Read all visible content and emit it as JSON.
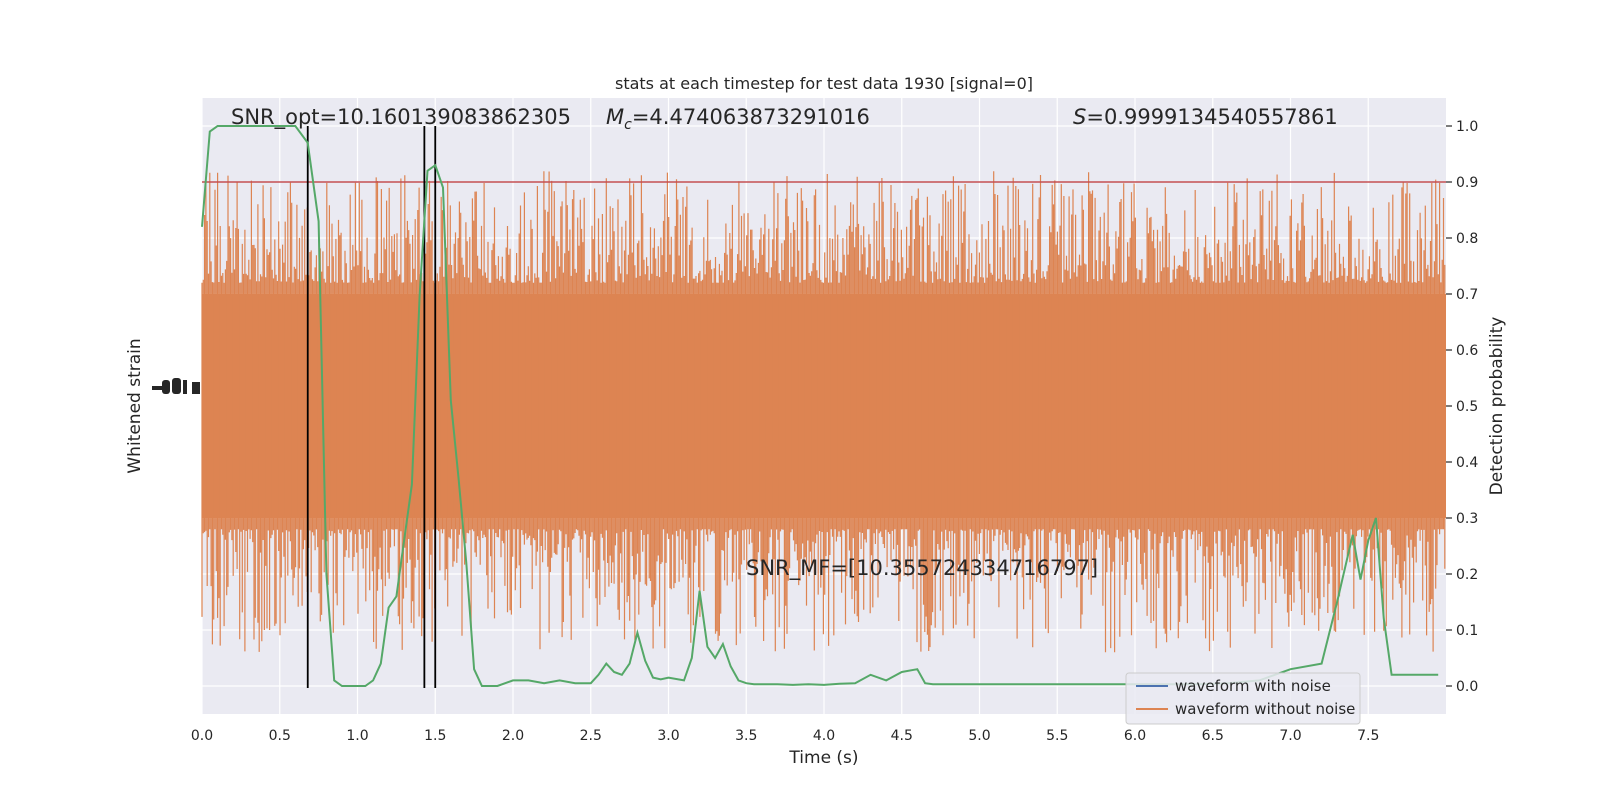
{
  "chart_data": {
    "type": "line",
    "title": "stats at each timestep for test data 1930 [signal=0]",
    "xlabel": "Time (s)",
    "ylabel_left": "Whitened strain",
    "ylabel_right": "Detection probability",
    "xlim": [
      0,
      8
    ],
    "ylim_right": [
      -0.05,
      1.05
    ],
    "x_ticks": [
      "0.0",
      "0.5",
      "1.0",
      "1.5",
      "2.0",
      "2.5",
      "3.0",
      "3.5",
      "4.0",
      "4.5",
      "5.0",
      "5.5",
      "6.0",
      "6.5",
      "7.0",
      "7.5"
    ],
    "y_ticks_right": [
      "0.0",
      "0.1",
      "0.2",
      "0.3",
      "0.4",
      "0.5",
      "0.6",
      "0.7",
      "0.8",
      "0.9",
      "1.0"
    ],
    "grid": true,
    "legend_position": "lower right",
    "annotations": {
      "snr_opt": "SNR_opt=10.160139083862305",
      "mc_symbol": "M",
      "mc_subscript": "c",
      "mc_value": "=4.474063873291016",
      "s_symbol": "S",
      "s_value": "=0.9999134540557861",
      "snr_mf": "SNR_MF=[10.355724334716797]"
    },
    "threshold": 0.9,
    "vertical_lines_x": [
      0.68,
      1.43,
      1.5
    ],
    "series": [
      {
        "name": "waveform with noise",
        "color": "#4c72b0",
        "values": []
      },
      {
        "name": "waveform without noise",
        "color": "#dd8452",
        "note_band": [
          0.3,
          0.7
        ]
      },
      {
        "name": "",
        "color": "#55a868",
        "x": [
          0.0,
          0.05,
          0.1,
          0.2,
          0.3,
          0.4,
          0.5,
          0.6,
          0.68,
          0.75,
          0.8,
          0.85,
          0.9,
          0.95,
          1.0,
          1.05,
          1.1,
          1.15,
          1.2,
          1.25,
          1.3,
          1.35,
          1.4,
          1.45,
          1.5,
          1.55,
          1.6,
          1.65,
          1.7,
          1.75,
          1.8,
          1.85,
          1.9,
          2.0,
          2.1,
          2.2,
          2.3,
          2.4,
          2.5,
          2.55,
          2.6,
          2.65,
          2.7,
          2.75,
          2.8,
          2.85,
          2.9,
          2.95,
          3.0,
          3.1,
          3.15,
          3.2,
          3.25,
          3.3,
          3.35,
          3.4,
          3.45,
          3.5,
          3.55,
          3.6,
          3.7,
          3.8,
          3.9,
          4.0,
          4.1,
          4.2,
          4.3,
          4.4,
          4.5,
          4.6,
          4.65,
          4.7,
          4.75,
          4.8,
          4.9,
          5.0,
          5.2,
          5.4,
          5.6,
          5.8,
          6.0,
          6.2,
          6.4,
          6.6,
          6.8,
          7.0,
          7.2,
          7.3,
          7.4,
          7.45,
          7.5,
          7.55,
          7.6,
          7.65,
          7.7,
          7.75,
          7.8,
          7.85,
          7.9,
          7.95
        ],
        "values": [
          0.82,
          0.99,
          1.0,
          1.0,
          1.0,
          1.0,
          1.0,
          1.0,
          0.97,
          0.83,
          0.2,
          0.01,
          0.0,
          0.0,
          0.0,
          0.0,
          0.01,
          0.04,
          0.14,
          0.16,
          0.26,
          0.36,
          0.7,
          0.92,
          0.93,
          0.89,
          0.51,
          0.37,
          0.22,
          0.03,
          0.0,
          0.0,
          0.0,
          0.01,
          0.01,
          0.005,
          0.01,
          0.005,
          0.005,
          0.02,
          0.04,
          0.025,
          0.02,
          0.04,
          0.095,
          0.045,
          0.015,
          0.012,
          0.015,
          0.01,
          0.05,
          0.17,
          0.07,
          0.05,
          0.075,
          0.035,
          0.01,
          0.005,
          0.003,
          0.003,
          0.003,
          0.002,
          0.003,
          0.002,
          0.004,
          0.005,
          0.02,
          0.01,
          0.025,
          0.03,
          0.005,
          0.003,
          0.003,
          0.003,
          0.003,
          0.003,
          0.003,
          0.003,
          0.003,
          0.003,
          0.003,
          0.003,
          0.003,
          0.005,
          0.01,
          0.03,
          0.04,
          0.15,
          0.27,
          0.19,
          0.26,
          0.3,
          0.12,
          0.02,
          0.02,
          0.02,
          0.02,
          0.02,
          0.02,
          0.02
        ]
      }
    ]
  }
}
